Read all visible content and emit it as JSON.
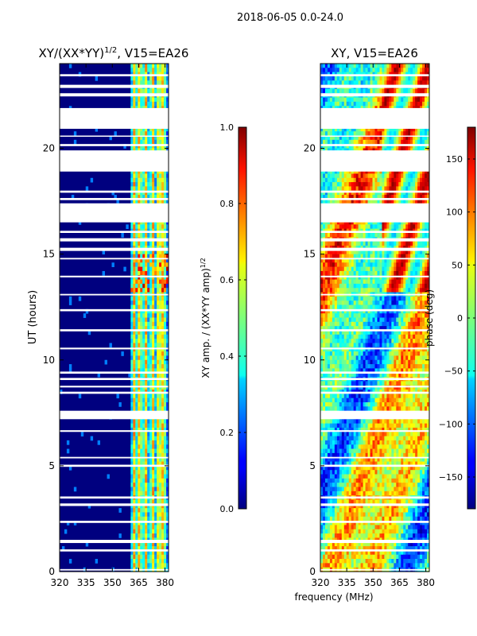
{
  "suptitle": "2018-06-05 0.0-24.0",
  "shared_xlabel": "frequency (MHz)",
  "chart_data": [
    {
      "type": "heatmap",
      "title_main": "XY/(XX*YY)",
      "title_sup": "1/2",
      "title_tail": ", V15=EA26",
      "ylabel": "UT (hours)",
      "xlim": [
        320,
        382
      ],
      "ylim": [
        0,
        24
      ],
      "xticks": [
        320,
        335,
        350,
        365,
        380
      ],
      "yticks": [
        0,
        5,
        10,
        15,
        20
      ],
      "colorbar": {
        "label_main": "XY amp. / (XX*YY amp)",
        "label_sup": "1/2",
        "range": [
          0.0,
          1.0
        ],
        "ticks": [
          "0.0",
          "0.2",
          "0.4",
          "0.6",
          "0.8",
          "1.0"
        ],
        "tick_values": [
          0.0,
          0.2,
          0.4,
          0.6,
          0.8,
          1.0
        ],
        "colormap": "jet"
      }
    },
    {
      "type": "heatmap",
      "title": "XY, V15=EA26",
      "xlim": [
        320,
        382
      ],
      "ylim": [
        0,
        24
      ],
      "xticks": [
        320,
        335,
        350,
        365,
        380
      ],
      "yticks": [
        0,
        5,
        10,
        15,
        20
      ],
      "colorbar": {
        "label": "phase (deg)",
        "range": [
          -180,
          180
        ],
        "ticks": [
          "−150",
          "−100",
          "−50",
          "0",
          "50",
          "100",
          "150"
        ],
        "tick_values": [
          -150,
          -100,
          -50,
          0,
          50,
          100,
          150
        ],
        "colormap": "jet"
      }
    }
  ],
  "flagged_ut_ranges": [
    [
      0.05,
      0.12
    ],
    [
      0.95,
      1.05
    ],
    [
      1.35,
      1.5
    ],
    [
      2.3,
      2.4
    ],
    [
      3.1,
      3.22
    ],
    [
      3.45,
      3.55
    ],
    [
      4.95,
      5.05
    ],
    [
      5.35,
      5.42
    ],
    [
      6.6,
      6.68
    ],
    [
      7.2,
      7.6
    ],
    [
      8.4,
      8.5
    ],
    [
      8.7,
      8.78
    ],
    [
      9.05,
      9.15
    ],
    [
      9.35,
      9.45
    ],
    [
      10.5,
      10.58
    ],
    [
      11.35,
      11.45
    ],
    [
      12.3,
      12.4
    ],
    [
      13.05,
      13.12
    ],
    [
      13.9,
      13.98
    ],
    [
      14.75,
      14.82
    ],
    [
      15.15,
      15.3
    ],
    [
      15.6,
      15.75
    ],
    [
      16.0,
      16.1
    ],
    [
      16.5,
      17.4
    ],
    [
      17.55,
      17.65
    ],
    [
      17.9,
      18.0
    ],
    [
      18.9,
      19.9
    ],
    [
      20.1,
      20.2
    ],
    [
      20.55,
      20.6
    ],
    [
      20.92,
      21.9
    ],
    [
      22.45,
      22.6
    ],
    [
      22.85,
      23.0
    ],
    [
      23.4,
      23.5
    ]
  ]
}
